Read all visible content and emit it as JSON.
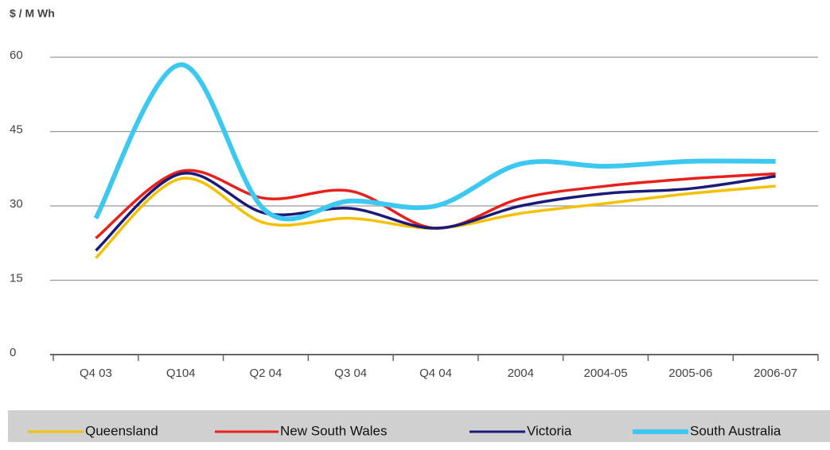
{
  "chart_data": {
    "type": "line",
    "ylabel": "$ / M Wh",
    "categories": [
      "Q4 03",
      "Q104",
      "Q2 04",
      "Q3 04",
      "Q4 04",
      "2004",
      "2004-05",
      "2005-06",
      "2006-07"
    ],
    "series": [
      {
        "name": "Queensland",
        "color": "#f5c000",
        "values": [
          19.5,
          35.5,
          26.5,
          27.5,
          25.5,
          28.5,
          30.5,
          32.5,
          34
        ]
      },
      {
        "name": "New South Wales",
        "color": "#e8201c",
        "values": [
          23.5,
          37,
          31.5,
          33,
          25.5,
          31.5,
          34,
          35.5,
          36.5
        ]
      },
      {
        "name": "Victoria",
        "color": "#1a1a7a",
        "values": [
          21,
          36.5,
          28.5,
          29.5,
          25.5,
          30,
          32.5,
          33.5,
          36
        ]
      },
      {
        "name": "South Australia",
        "color": "#3cc8f0",
        "values": [
          27.5,
          58.5,
          29,
          31,
          30,
          38.5,
          38,
          39,
          39
        ]
      }
    ],
    "ylim": [
      0,
      60
    ],
    "yticks": [
      0,
      15,
      30,
      45,
      60
    ],
    "grid": true,
    "legend": "bottom"
  }
}
